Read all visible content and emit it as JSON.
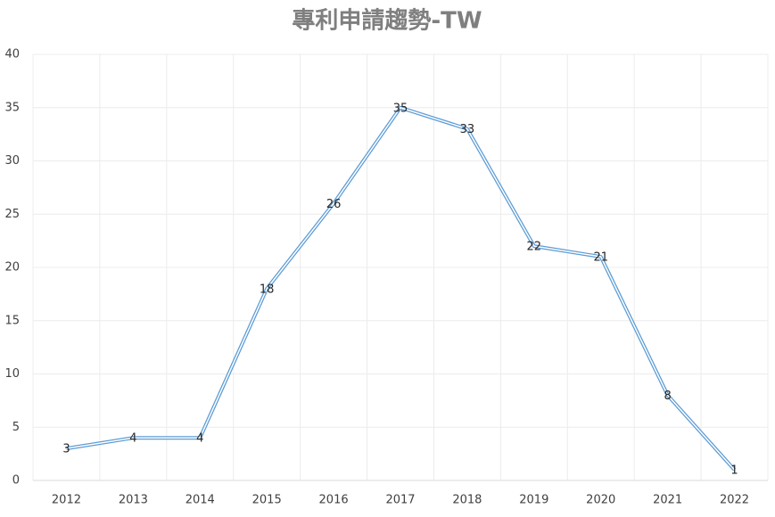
{
  "chart_data": {
    "type": "line",
    "title": "專利申請趨勢-TW",
    "categories": [
      "2012",
      "2013",
      "2014",
      "2015",
      "2016",
      "2017",
      "2018",
      "2019",
      "2020",
      "2021",
      "2022"
    ],
    "values": [
      3,
      4,
      4,
      18,
      26,
      35,
      33,
      22,
      21,
      8,
      1
    ],
    "color": "#5b9bd5",
    "ylim": [
      0,
      40
    ],
    "yticks": [
      0,
      5,
      10,
      15,
      20,
      25,
      30,
      35,
      40
    ],
    "grid": true
  }
}
